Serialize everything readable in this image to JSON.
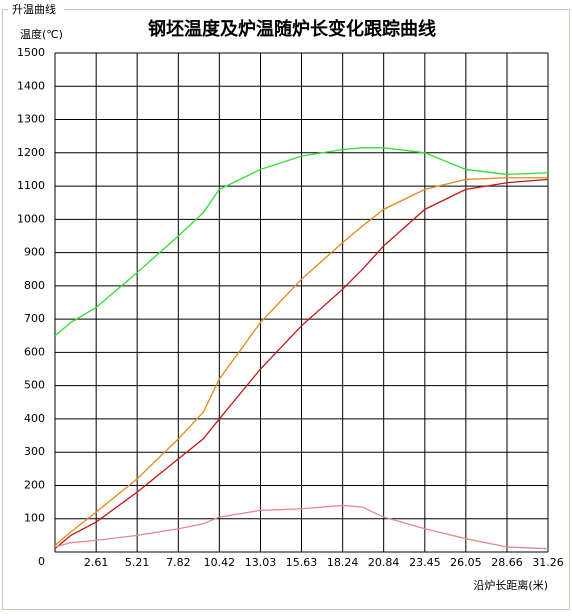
{
  "panel": {
    "title": "升温曲线"
  },
  "chart_data": {
    "type": "line",
    "title": "钢坯温度及炉温随炉长变化跟踪曲线",
    "y_label": "温度(℃)",
    "x_label": "沿炉长距离(米)",
    "x": [
      0,
      1,
      2.61,
      5.21,
      7.82,
      9.4,
      10.42,
      13.03,
      15.63,
      18.24,
      19.5,
      20.84,
      23.45,
      26.05,
      28.66,
      31.26
    ],
    "series": [
      {
        "color": "#33dd33",
        "values": [
          650,
          690,
          735,
          840,
          950,
          1020,
          1090,
          1150,
          1190,
          1210,
          1215,
          1215,
          1200,
          1150,
          1135,
          1140
        ]
      },
      {
        "color": "#e08a1a",
        "values": [
          20,
          60,
          120,
          220,
          340,
          420,
          520,
          690,
          820,
          930,
          980,
          1030,
          1090,
          1120,
          1125,
          1125
        ]
      },
      {
        "color": "#c01818",
        "values": [
          10,
          50,
          90,
          180,
          280,
          340,
          400,
          550,
          680,
          790,
          850,
          920,
          1030,
          1090,
          1110,
          1120
        ]
      },
      {
        "color": "#e88888",
        "values": [
          15,
          28,
          35,
          50,
          70,
          85,
          105,
          125,
          130,
          140,
          135,
          105,
          70,
          40,
          15,
          10
        ]
      }
    ],
    "xlim": [
      0,
      31.26
    ],
    "ylim": [
      0,
      1500
    ],
    "xticks": [
      2.61,
      5.21,
      7.82,
      10.42,
      13.03,
      15.63,
      18.24,
      20.84,
      23.45,
      26.05,
      28.66,
      31.26
    ],
    "yticks": [
      0,
      100,
      200,
      300,
      400,
      500,
      600,
      700,
      800,
      900,
      1000,
      1100,
      1200,
      1300,
      1400,
      1500
    ],
    "grid": true
  }
}
